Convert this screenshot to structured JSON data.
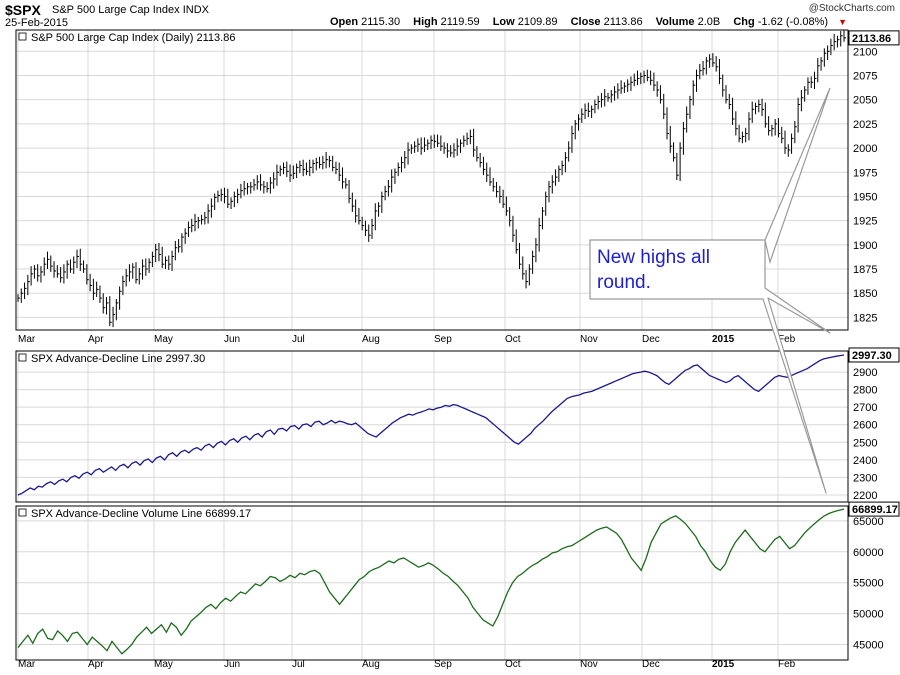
{
  "header": {
    "symbol": "$SPX",
    "name": "S&P 500 Large Cap Index",
    "exchange": "INDX",
    "date": "25-Feb-2015",
    "open_label": "Open",
    "open": "2115.30",
    "high_label": "High",
    "high": "2119.59",
    "low_label": "Low",
    "low": "2109.89",
    "close_label": "Close",
    "close": "2113.86",
    "volume_label": "Volume",
    "volume": "2.0B",
    "chg_label": "Chg",
    "chg": "-1.62 (-0.08%)",
    "credit": "@StockCharts.com"
  },
  "annotation": {
    "line1": "New highs all",
    "line2": "round."
  },
  "colors": {
    "price": "#000000",
    "adline": "#1a1a8c",
    "advol": "#1e6b1e",
    "grid": "#d8d8d8",
    "note": "#1d1dd6"
  },
  "chart_data": [
    {
      "type": "line",
      "style": "ohlc-bars",
      "title": "S&P 500 Large Cap Index (Daily) 2113.86",
      "last_value_tag": "2113.86",
      "x_ticks": [
        "Mar",
        "Apr",
        "May",
        "Jun",
        "Jul",
        "Aug",
        "Sep",
        "Oct",
        "Nov",
        "Dec",
        "2015",
        "Feb"
      ],
      "y_ticks": [
        1825,
        1850,
        1875,
        1900,
        1925,
        1950,
        1975,
        2000,
        2025,
        2050,
        2075,
        2100
      ],
      "ylim": [
        1812,
        2122
      ],
      "grid": true,
      "series": [
        {
          "values": [
            1845,
            1850,
            1855,
            1862,
            1870,
            1875,
            1868,
            1872,
            1880,
            1885,
            1878,
            1873,
            1870,
            1866,
            1872,
            1880,
            1875,
            1882,
            1888,
            1880,
            1875,
            1864,
            1858,
            1850,
            1854,
            1845,
            1835,
            1840,
            1820,
            1828,
            1840,
            1852,
            1862,
            1868,
            1872,
            1877,
            1864,
            1870,
            1878,
            1875,
            1882,
            1888,
            1895,
            1890,
            1880,
            1884,
            1880,
            1888,
            1897,
            1898,
            1908,
            1912,
            1918,
            1920,
            1924,
            1925,
            1926,
            1928,
            1935,
            1940,
            1949,
            1951,
            1952,
            1950,
            1942,
            1945,
            1950,
            1952,
            1956,
            1958,
            1960,
            1960,
            1962,
            1965,
            1962,
            1960,
            1958,
            1964,
            1968,
            1975,
            1978,
            1980,
            1976,
            1972,
            1974,
            1980,
            1982,
            1978,
            1976,
            1980,
            1984,
            1985,
            1983,
            1985,
            1988,
            1987,
            1980,
            1978,
            1972,
            1965,
            1962,
            1948,
            1940,
            1930,
            1925,
            1920,
            1915,
            1910,
            1920,
            1935,
            1940,
            1950,
            1955,
            1960,
            1970,
            1975,
            1980,
            1985,
            1990,
            1998,
            2000,
            2002,
            2004,
            2000,
            2003,
            2005,
            2008,
            2007,
            2005,
            2002,
            2000,
            1997,
            1995,
            1998,
            2002,
            2005,
            2008,
            2010,
            2012,
            1998,
            1990,
            1985,
            1978,
            1972,
            1965,
            1960,
            1955,
            1950,
            1942,
            1935,
            1925,
            1910,
            1895,
            1880,
            1870,
            1862,
            1875,
            1888,
            1900,
            1920,
            1935,
            1950,
            1960,
            1965,
            1970,
            1978,
            1982,
            1990,
            2000,
            2015,
            2025,
            2030,
            2035,
            2039,
            2038,
            2040,
            2045,
            2048,
            2050,
            2053,
            2052,
            2055,
            2058,
            2060,
            2062,
            2064,
            2066,
            2068,
            2070,
            2072,
            2074,
            2075,
            2073,
            2070,
            2065,
            2060,
            2050,
            2035,
            2015,
            2002,
            1990,
            1972,
            2000,
            2020,
            2035,
            2050,
            2065,
            2075,
            2080,
            2082,
            2090,
            2092,
            2088,
            2084,
            2072,
            2060,
            2050,
            2045,
            2030,
            2020,
            2010,
            2012,
            2015,
            2030,
            2040,
            2043,
            2045,
            2040,
            2025,
            2018,
            2020,
            2025,
            2015,
            2010,
            2000,
            1998,
            2010,
            2022,
            2045,
            2052,
            2060,
            2068,
            2068,
            2072,
            2085,
            2090,
            2098,
            2100,
            2106,
            2110,
            2112,
            2116,
            2113.86
          ]
        }
      ]
    },
    {
      "type": "line",
      "title": "SPX Advance-Decline Line 2997.30",
      "last_value_tag": "2997.30",
      "x_ticks": [
        "Mar",
        "Apr",
        "May",
        "Jun",
        "Jul",
        "Aug",
        "Sep",
        "Oct",
        "Nov",
        "Dec",
        "2015",
        "Feb"
      ],
      "y_ticks": [
        2200,
        2300,
        2400,
        2500,
        2600,
        2700,
        2800,
        2900
      ],
      "ylim": [
        2160,
        3020
      ],
      "grid": true,
      "series": [
        {
          "values": [
            2200,
            2210,
            2225,
            2240,
            2230,
            2250,
            2245,
            2265,
            2275,
            2260,
            2280,
            2290,
            2275,
            2300,
            2310,
            2295,
            2320,
            2330,
            2315,
            2340,
            2350,
            2330,
            2345,
            2360,
            2340,
            2365,
            2375,
            2355,
            2380,
            2390,
            2370,
            2395,
            2405,
            2385,
            2410,
            2420,
            2400,
            2430,
            2440,
            2420,
            2445,
            2455,
            2440,
            2460,
            2470,
            2455,
            2480,
            2490,
            2470,
            2495,
            2505,
            2485,
            2510,
            2520,
            2500,
            2525,
            2535,
            2515,
            2540,
            2550,
            2530,
            2560,
            2570,
            2545,
            2575,
            2580,
            2565,
            2590,
            2595,
            2575,
            2600,
            2605,
            2590,
            2615,
            2620,
            2600,
            2610,
            2625,
            2610,
            2620,
            2615,
            2605,
            2600,
            2610,
            2590,
            2570,
            2550,
            2540,
            2530,
            2550,
            2570,
            2590,
            2610,
            2625,
            2640,
            2650,
            2660,
            2655,
            2665,
            2672,
            2680,
            2690,
            2685,
            2695,
            2700,
            2710,
            2705,
            2715,
            2710,
            2700,
            2690,
            2680,
            2670,
            2660,
            2650,
            2640,
            2620,
            2600,
            2580,
            2560,
            2540,
            2520,
            2500,
            2490,
            2510,
            2530,
            2550,
            2580,
            2600,
            2620,
            2645,
            2670,
            2690,
            2710,
            2730,
            2750,
            2760,
            2765,
            2770,
            2780,
            2785,
            2790,
            2800,
            2810,
            2820,
            2830,
            2840,
            2850,
            2860,
            2870,
            2880,
            2890,
            2895,
            2900,
            2905,
            2900,
            2890,
            2880,
            2860,
            2840,
            2830,
            2850,
            2870,
            2890,
            2910,
            2920,
            2935,
            2940,
            2920,
            2900,
            2880,
            2870,
            2860,
            2850,
            2840,
            2850,
            2870,
            2880,
            2860,
            2840,
            2820,
            2800,
            2790,
            2810,
            2830,
            2850,
            2870,
            2880,
            2875,
            2870,
            2880,
            2890,
            2900,
            2910,
            2920,
            2935,
            2950,
            2965,
            2975,
            2980,
            2985,
            2990,
            2994,
            2997.3
          ]
        }
      ]
    },
    {
      "type": "line",
      "title": "SPX Advance-Decline Volume Line 66899.17",
      "last_value_tag": "66899.17",
      "x_ticks": [
        "Mar",
        "Apr",
        "May",
        "Jun",
        "Jul",
        "Aug",
        "Sep",
        "Oct",
        "Nov",
        "Dec",
        "2015",
        "Feb"
      ],
      "y_ticks": [
        45000,
        50000,
        55000,
        60000,
        65000
      ],
      "ylim": [
        42500,
        67400
      ],
      "grid": true,
      "series": [
        {
          "values": [
            44500,
            45500,
            46500,
            45200,
            46800,
            47500,
            46000,
            45800,
            47200,
            46500,
            45500,
            46800,
            47000,
            46000,
            45000,
            46200,
            45500,
            44800,
            44000,
            45500,
            44500,
            43500,
            44200,
            45000,
            46200,
            47000,
            47800,
            46800,
            47500,
            48200,
            47000,
            48500,
            47800,
            46500,
            47500,
            48800,
            49500,
            50200,
            51000,
            51500,
            50800,
            51800,
            52500,
            52000,
            52800,
            53500,
            53200,
            54000,
            54800,
            54500,
            55200,
            56000,
            55800,
            55200,
            55600,
            56200,
            55800,
            56500,
            56300,
            56800,
            57000,
            56500,
            55000,
            53500,
            52500,
            51500,
            52500,
            53500,
            54500,
            55500,
            56000,
            56800,
            57200,
            57500,
            58000,
            58500,
            58200,
            58800,
            59000,
            58500,
            58000,
            57500,
            57800,
            58200,
            57800,
            57200,
            56500,
            56000,
            55200,
            54500,
            53500,
            52500,
            51000,
            50000,
            49000,
            48500,
            48000,
            49500,
            51500,
            53500,
            55000,
            56000,
            56500,
            57200,
            57800,
            58200,
            58800,
            59200,
            59800,
            60000,
            60500,
            60800,
            61000,
            61500,
            62000,
            62500,
            63000,
            63500,
            63800,
            64000,
            63500,
            63000,
            62000,
            60500,
            59000,
            58000,
            57000,
            59000,
            61500,
            63000,
            64500,
            65000,
            65500,
            65800,
            65200,
            64500,
            63500,
            62500,
            61000,
            60000,
            58500,
            57500,
            57000,
            58000,
            60000,
            61500,
            62500,
            63500,
            62500,
            61500,
            60500,
            60000,
            61000,
            62000,
            62500,
            61500,
            60500,
            61000,
            62000,
            63000,
            63800,
            64500,
            65200,
            65800,
            66200,
            66500,
            66700,
            66899.17
          ]
        }
      ]
    }
  ]
}
